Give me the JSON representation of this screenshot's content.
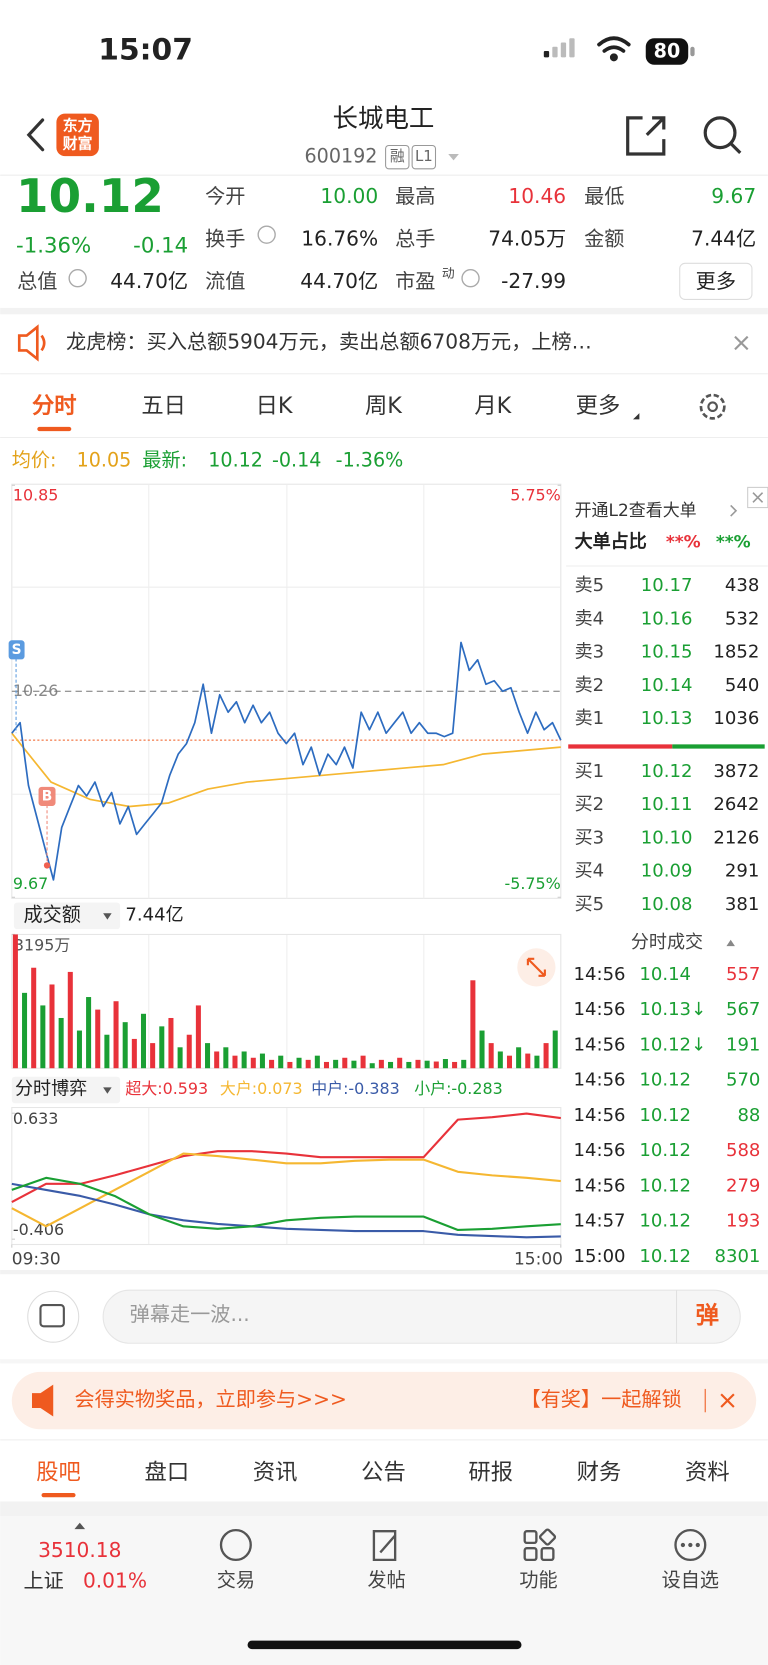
{
  "status_bar": {
    "time": "15:07",
    "battery": "80"
  },
  "header": {
    "logo": [
      "东方",
      "财富"
    ],
    "title": "长城电工",
    "code": "600192",
    "badges": [
      "融",
      "L1"
    ]
  },
  "quote": {
    "price": "10.12",
    "change_pct": "-1.36%",
    "change": "-0.14",
    "color": "#1a9f33",
    "fields": [
      {
        "label": "今开",
        "value": "10.00",
        "color": "#1a9f33"
      },
      {
        "label": "最高",
        "value": "10.46",
        "color": "#e8323a"
      },
      {
        "label": "最低",
        "value": "9.67",
        "color": "#1a9f33"
      },
      {
        "label": "换手",
        "value": "16.76%",
        "color": "#222222"
      },
      {
        "label": "总手",
        "value": "74.05万",
        "color": "#222222"
      },
      {
        "label": "金额",
        "value": "7.44亿",
        "color": "#222222"
      },
      {
        "label": "总值",
        "value": "44.70亿",
        "color": "#222222"
      },
      {
        "label": "流值",
        "value": "44.70亿",
        "color": "#222222"
      },
      {
        "label": "市盈",
        "value": "-27.99",
        "color": "#222222"
      }
    ],
    "pe_sup": "动",
    "more": "更多"
  },
  "notice": {
    "text": "龙虎榜：买入总额5904万元，卖出总额6708万元，上榜…"
  },
  "tabs": {
    "items": [
      "分时",
      "五日",
      "日K",
      "周K",
      "月K",
      "更多"
    ],
    "active": 0
  },
  "price_legend": {
    "avg_label": "均价:",
    "avg": "10.05",
    "last_label": "最新:",
    "last": "10.12",
    "change": "-0.14",
    "change_pct": "-1.36%"
  },
  "markers": [
    "S",
    "B"
  ],
  "chart_data": [
    {
      "type": "line",
      "ylim": [
        9.67,
        10.85
      ],
      "yticks": [
        9.67,
        10.26,
        10.85
      ],
      "y2lim": [
        -5.75,
        5.75
      ],
      "y2ticks": [
        {
          "value": -5.75,
          "label": "-5.75%"
        },
        {
          "value": 5.75,
          "label": "5.75%"
        }
      ],
      "series": [
        {
          "color": "#2d6cc0",
          "values": [
            10.14,
            10.17,
            9.99,
            9.9,
            9.81,
            9.72,
            9.87,
            9.93,
            9.99,
            9.96,
            10.0,
            9.93,
            9.97,
            9.88,
            9.93,
            9.85,
            9.88,
            9.91,
            9.94,
            10.02,
            10.08,
            10.11,
            10.17,
            10.28,
            10.14,
            10.25,
            10.2,
            10.23,
            10.17,
            10.22,
            10.17,
            10.2,
            10.14,
            10.11,
            10.14,
            10.05,
            10.1,
            10.02,
            10.08,
            10.05,
            10.1,
            10.04,
            10.2,
            10.15,
            10.2,
            10.14,
            10.17,
            10.2,
            10.14,
            10.17,
            10.14,
            10.14,
            10.13,
            10.14,
            10.4,
            10.32,
            10.35,
            10.28,
            10.29,
            10.26,
            10.27,
            10.2,
            10.14,
            10.2,
            10.15,
            10.17,
            10.12
          ]
        },
        {
          "color": "#f5b731",
          "values": [
            10.14,
            10.0,
            9.95,
            9.93,
            9.94,
            9.98,
            10.0,
            10.01,
            10.02,
            10.03,
            10.04,
            10.05,
            10.08,
            10.09,
            10.1
          ]
        }
      ]
    },
    {
      "type": "bar",
      "selector": "成交额",
      "total": "7.44亿",
      "ylim": [
        0,
        3195
      ],
      "yticks": [
        {
          "value": 3195,
          "label": "3195万"
        }
      ],
      "values": [
        3195,
        1800,
        2400,
        1500,
        2000,
        1200,
        2300,
        900,
        1700,
        1400,
        800,
        1600,
        1100,
        700,
        1300,
        600,
        1000,
        1200,
        500,
        800,
        1500,
        600,
        400,
        500,
        300,
        400,
        250,
        350,
        200,
        300,
        150,
        250,
        200,
        300,
        150,
        200,
        250,
        180,
        300,
        120,
        200,
        150,
        250,
        150,
        200,
        180,
        160,
        220,
        150,
        200,
        2100,
        900,
        600,
        400,
        300,
        500,
        350,
        300,
        600,
        900
      ],
      "colors": [
        "#e8323a",
        "#1a9f33",
        "#e8323a",
        "#1a9f33",
        "#e8323a",
        "#1a9f33",
        "#e8323a",
        "#1a9f33",
        "#1a9f33",
        "#e8323a",
        "#1a9f33",
        "#e8323a",
        "#1a9f33",
        "#e8323a",
        "#1a9f33",
        "#e8323a",
        "#1a9f33",
        "#e8323a",
        "#1a9f33",
        "#e8323a",
        "#e8323a",
        "#1a9f33",
        "#e8323a",
        "#1a9f33",
        "#e8323a",
        "#1a9f33",
        "#e8323a",
        "#1a9f33",
        "#e8323a",
        "#1a9f33",
        "#e8323a",
        "#1a9f33",
        "#e8323a",
        "#1a9f33",
        "#e8323a",
        "#1a9f33",
        "#e8323a",
        "#1a9f33",
        "#e8323a",
        "#1a9f33",
        "#e8323a",
        "#1a9f33",
        "#e8323a",
        "#1a9f33",
        "#e8323a",
        "#1a9f33",
        "#e8323a",
        "#1a9f33",
        "#e8323a",
        "#1a9f33",
        "#e8323a",
        "#1a9f33",
        "#e8323a",
        "#1a9f33",
        "#e8323a",
        "#1a9f33",
        "#e8323a",
        "#1a9f33",
        "#e8323a",
        "#1a9f33"
      ]
    },
    {
      "type": "line",
      "selector": "分时博弈",
      "ylim": [
        -0.45,
        0.68
      ],
      "yticks": [
        -0.406,
        0.633
      ],
      "xlim": [
        0,
        240
      ],
      "xticks": [
        {
          "value": 0,
          "label": "09:30"
        },
        {
          "value": 240,
          "label": "15:00"
        }
      ],
      "series": [
        {
          "name": "超大:0.593",
          "color": "#e8323a",
          "values": [
            -0.1,
            0.05,
            0.05,
            0.12,
            0.2,
            0.28,
            0.32,
            0.32,
            0.3,
            0.27,
            0.27,
            0.27,
            0.27,
            0.58,
            0.6,
            0.63,
            0.593
          ]
        },
        {
          "name": "大户:0.073",
          "color": "#f5b731",
          "values": [
            -0.15,
            -0.3,
            -0.15,
            0.0,
            0.15,
            0.3,
            0.28,
            0.25,
            0.22,
            0.22,
            0.24,
            0.25,
            0.25,
            0.15,
            0.12,
            0.1,
            0.073
          ]
        },
        {
          "name": "中户:-0.383",
          "color": "#3a5ba8",
          "values": [
            0.05,
            0.0,
            -0.05,
            -0.12,
            -0.2,
            -0.25,
            -0.28,
            -0.3,
            -0.32,
            -0.33,
            -0.34,
            -0.34,
            -0.34,
            -0.37,
            -0.38,
            -0.39,
            -0.383
          ]
        },
        {
          "name": "小户:-0.283",
          "color": "#1a9f33",
          "values": [
            0.0,
            0.1,
            0.05,
            -0.05,
            -0.2,
            -0.3,
            -0.32,
            -0.3,
            -0.25,
            -0.23,
            -0.22,
            -0.22,
            -0.22,
            -0.33,
            -0.32,
            -0.3,
            -0.283
          ]
        }
      ]
    }
  ],
  "order_book": {
    "promo": "开通L2查看大单",
    "ratio_label": "大单占比",
    "ratio_values": [
      "**%",
      "**%"
    ],
    "asks": [
      {
        "label": "卖5",
        "price": "10.17",
        "volume": "438"
      },
      {
        "label": "卖4",
        "price": "10.16",
        "volume": "532"
      },
      {
        "label": "卖3",
        "price": "10.15",
        "volume": "1852"
      },
      {
        "label": "卖2",
        "price": "10.14",
        "volume": "540"
      },
      {
        "label": "卖1",
        "price": "10.13",
        "volume": "1036"
      }
    ],
    "bids": [
      {
        "label": "买1",
        "price": "10.12",
        "volume": "3872"
      },
      {
        "label": "买2",
        "price": "10.11",
        "volume": "2642"
      },
      {
        "label": "买3",
        "price": "10.10",
        "volume": "2126"
      },
      {
        "label": "买4",
        "price": "10.09",
        "volume": "291"
      },
      {
        "label": "买5",
        "price": "10.08",
        "volume": "381"
      }
    ]
  },
  "trades": {
    "title": "分时成交",
    "rows": [
      {
        "time": "14:56",
        "price": "10.14",
        "volume": "557",
        "color": "#e8323a"
      },
      {
        "time": "14:56",
        "price": "10.13↓",
        "volume": "567",
        "color": "#1a9f33"
      },
      {
        "time": "14:56",
        "price": "10.12↓",
        "volume": "191",
        "color": "#1a9f33"
      },
      {
        "time": "14:56",
        "price": "10.12",
        "volume": "570",
        "color": "#1a9f33"
      },
      {
        "time": "14:56",
        "price": "10.12",
        "volume": "88",
        "color": "#1a9f33"
      },
      {
        "time": "14:56",
        "price": "10.12",
        "volume": "588",
        "color": "#e8323a"
      },
      {
        "time": "14:56",
        "price": "10.12",
        "volume": "279",
        "color": "#e8323a"
      },
      {
        "time": "14:57",
        "price": "10.12",
        "volume": "193",
        "color": "#e8323a"
      },
      {
        "time": "15:00",
        "price": "10.12",
        "volume": "8301",
        "color": "#1a9f33"
      }
    ]
  },
  "comment": {
    "placeholder": "弹幕走一波...",
    "button": "弹"
  },
  "banner": {
    "text": "会得实物奖品，立即参与>>>",
    "right": "【有奖】一起解锁"
  },
  "bottom_tabs": {
    "items": [
      "股吧",
      "盘口",
      "资讯",
      "公告",
      "研报",
      "财务",
      "资料"
    ],
    "active": 0
  },
  "nav": {
    "index_value": "3510.18",
    "index_name": "上证",
    "index_change": "0.01%",
    "items": [
      "交易",
      "发帖",
      "功能",
      "设自选"
    ]
  }
}
